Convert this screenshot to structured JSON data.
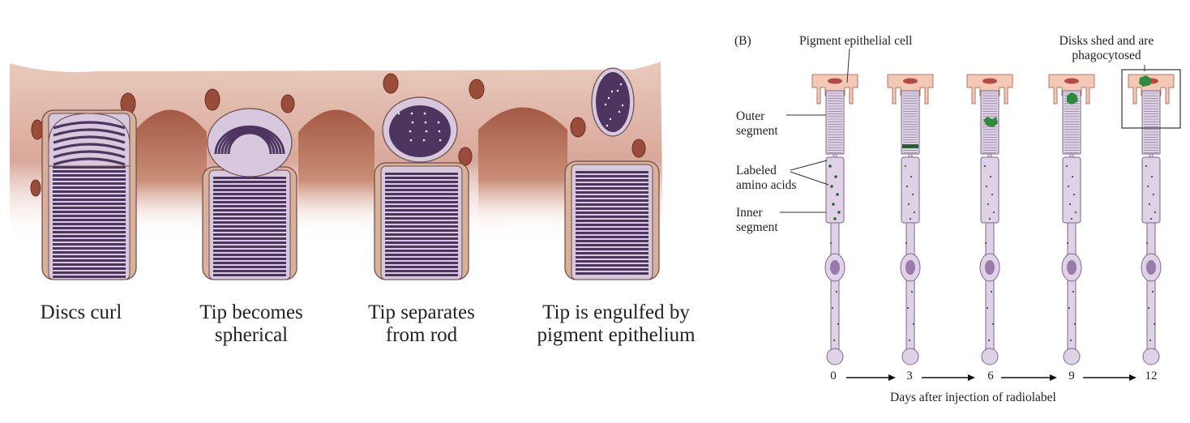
{
  "panel_a": {
    "stages": [
      {
        "caption": "Discs curl",
        "state": "curl"
      },
      {
        "caption": "Tip becomes\nspherical",
        "state": "spherical"
      },
      {
        "caption": "Tip separates\nfrom rod",
        "state": "separating"
      },
      {
        "caption": "Tip is engulfed by\npigment epithelium",
        "state": "engulfed"
      }
    ],
    "colors": {
      "epithelium": "#d9b09a",
      "disc": "#4e3560",
      "membrane": "#d8c8dd",
      "granule": "#9a4c3a",
      "outline": "#6a4a4a"
    }
  },
  "panel_b": {
    "panel_label": "(B)",
    "labels": {
      "pigment_cell": "Pigment epithelial cell",
      "disks_shed": "Disks shed and are\nphagocytosed",
      "outer_segment": "Outer\nsegment",
      "labeled_amino_acids": "Labeled\namino acids",
      "inner_segment": "Inner\nsegment"
    },
    "days": [
      "0",
      "3",
      "6",
      "9",
      "12"
    ],
    "axis_label": "Days after injection of radiolabel",
    "colors": {
      "cell": "#f3c8b6",
      "nucleus": "#b24b44",
      "rod": "#e0d2e6",
      "rod_line": "#7a6a88",
      "label": "#2f5a3a",
      "phagosome": "#2e8a3c"
    }
  }
}
